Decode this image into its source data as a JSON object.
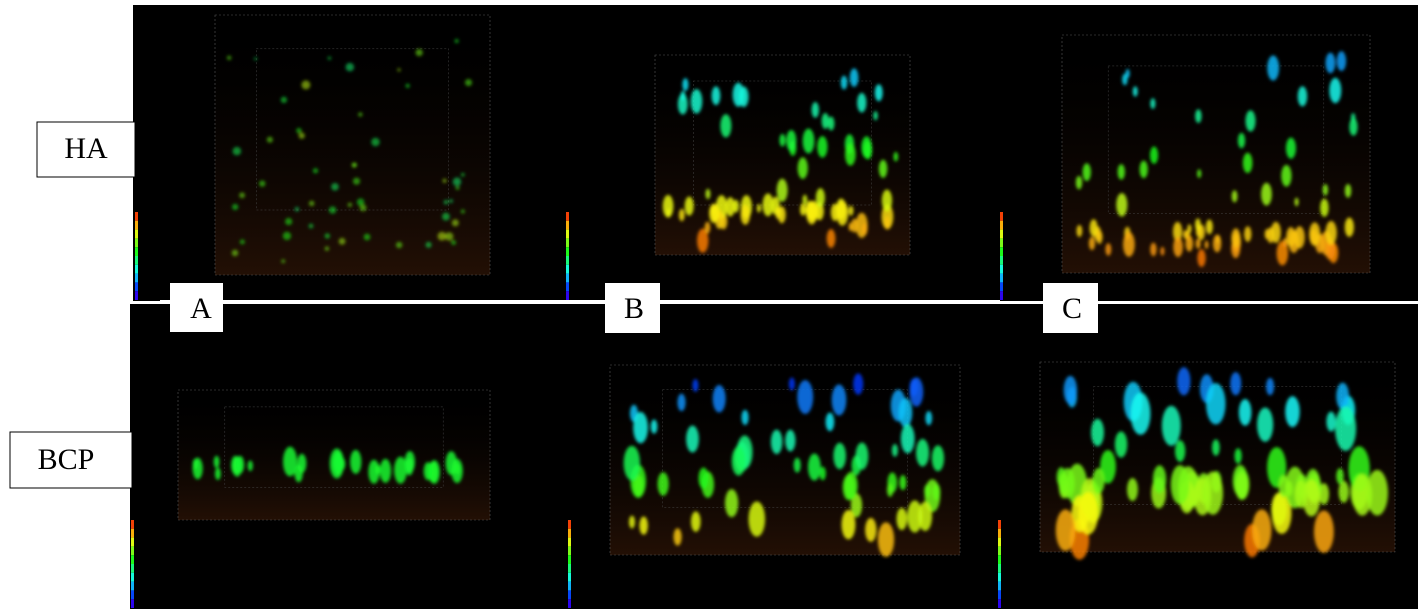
{
  "rows": [
    "HA",
    "BCP"
  ],
  "panels": [
    "A",
    "B",
    "C"
  ]
}
